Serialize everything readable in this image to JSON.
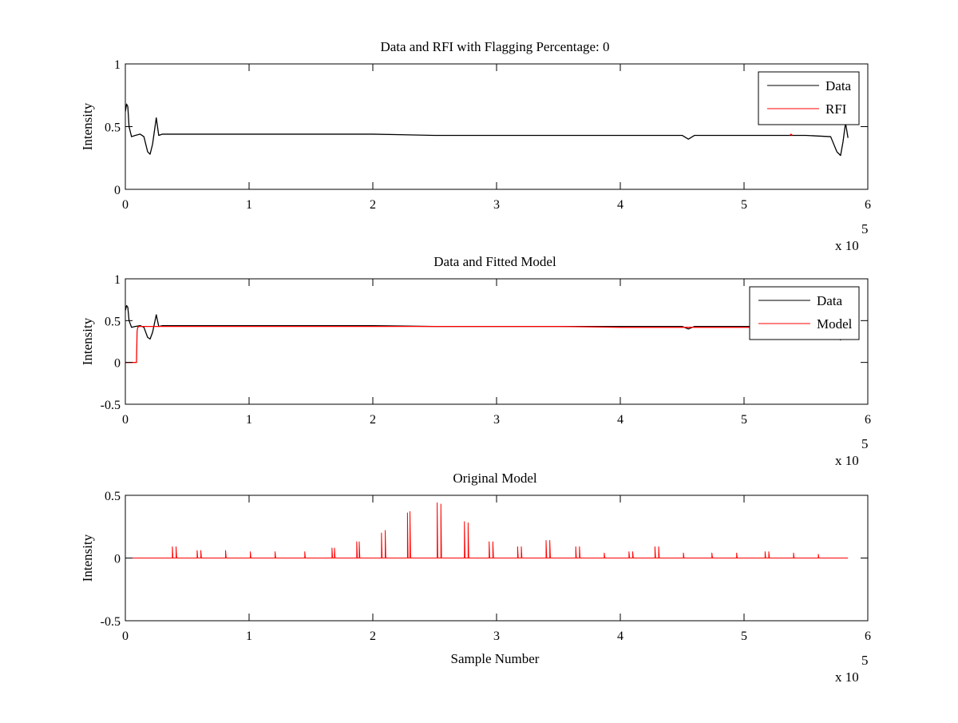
{
  "chart_data": [
    {
      "type": "line",
      "title": "Data and RFI with Flagging Percentage: 0",
      "xlabel": "",
      "ylabel": "Intensity",
      "xlim": [
        0,
        6
      ],
      "ylim": [
        0,
        1
      ],
      "x_ticks": [
        "0",
        "1",
        "2",
        "3",
        "4",
        "5",
        "6"
      ],
      "y_ticks": [
        "0",
        "0.5",
        "1"
      ],
      "x_multiplier": {
        "base": "x 10",
        "exponent": "5"
      },
      "legend_position": "top-right",
      "grid": false,
      "series": [
        {
          "name": "Data",
          "color": "#000000",
          "x": [
            0,
            0.01,
            0.02,
            0.03,
            0.05,
            0.08,
            0.12,
            0.15,
            0.18,
            0.2,
            0.22,
            0.24,
            0.25,
            0.27,
            0.3,
            0.5,
            1,
            1.5,
            2,
            2.5,
            3,
            3.5,
            4,
            4.5,
            4.55,
            4.6,
            5,
            5.5,
            5.7,
            5.75,
            5.78,
            5.8,
            5.82,
            5.84
          ],
          "y": [
            0.62,
            0.68,
            0.66,
            0.5,
            0.42,
            0.43,
            0.44,
            0.42,
            0.3,
            0.28,
            0.36,
            0.5,
            0.57,
            0.43,
            0.44,
            0.44,
            0.44,
            0.44,
            0.44,
            0.43,
            0.43,
            0.43,
            0.43,
            0.43,
            0.4,
            0.43,
            0.43,
            0.43,
            0.42,
            0.3,
            0.27,
            0.38,
            0.53,
            0.41
          ]
        },
        {
          "name": "RFI",
          "color": "#ff0000",
          "x": [
            5.37,
            5.38,
            5.39
          ],
          "y": [
            0.43,
            0.44,
            0.43
          ]
        }
      ]
    },
    {
      "type": "line",
      "title": "Data and Fitted Model",
      "xlabel": "",
      "ylabel": "Intensity",
      "xlim": [
        0,
        6
      ],
      "ylim": [
        -0.5,
        1
      ],
      "x_ticks": [
        "0",
        "1",
        "2",
        "3",
        "4",
        "5",
        "6"
      ],
      "y_ticks": [
        "-0.5",
        "0",
        "0.5",
        "1"
      ],
      "x_multiplier": {
        "base": "x 10",
        "exponent": "5"
      },
      "legend_position": "top-right",
      "grid": false,
      "series": [
        {
          "name": "Data",
          "color": "#000000",
          "x": [
            0,
            0.01,
            0.02,
            0.03,
            0.05,
            0.08,
            0.12,
            0.15,
            0.18,
            0.2,
            0.22,
            0.24,
            0.25,
            0.27,
            0.3,
            0.5,
            1,
            1.5,
            2,
            2.5,
            3,
            3.5,
            4,
            4.5,
            4.55,
            4.6,
            5,
            5.5,
            5.7,
            5.75,
            5.78,
            5.8,
            5.82,
            5.84
          ],
          "y": [
            0.62,
            0.68,
            0.66,
            0.5,
            0.42,
            0.43,
            0.44,
            0.42,
            0.3,
            0.28,
            0.36,
            0.5,
            0.57,
            0.43,
            0.44,
            0.44,
            0.44,
            0.44,
            0.44,
            0.43,
            0.43,
            0.43,
            0.43,
            0.43,
            0.4,
            0.43,
            0.43,
            0.43,
            0.42,
            0.3,
            0.27,
            0.38,
            0.53,
            0.41
          ]
        },
        {
          "name": "Model",
          "color": "#ff0000",
          "x": [
            0,
            0.09,
            0.095,
            0.1,
            0.11,
            0.12,
            0.5,
            1,
            1.5,
            2,
            2.5,
            3,
            3.5,
            4,
            4.5,
            5,
            5.5,
            5.84
          ],
          "y": [
            0,
            0,
            0.37,
            0.42,
            0.43,
            0.43,
            0.43,
            0.43,
            0.43,
            0.43,
            0.43,
            0.43,
            0.43,
            0.42,
            0.42,
            0.42,
            0.42,
            0.42
          ]
        }
      ]
    },
    {
      "type": "line",
      "title": "Original Model",
      "xlabel": "Sample Number",
      "ylabel": "Intensity",
      "xlim": [
        0,
        6
      ],
      "ylim": [
        -0.5,
        0.5
      ],
      "x_ticks": [
        "0",
        "1",
        "2",
        "3",
        "4",
        "5",
        "6"
      ],
      "y_ticks": [
        "-0.5",
        "0",
        "0.5"
      ],
      "x_multiplier": {
        "base": "x 10",
        "exponent": "5"
      },
      "grid": false,
      "series": [
        {
          "color": "#ff0000",
          "baseline": 0,
          "x_end": 5.84,
          "spikes": [
            [
              0.38,
              0.09
            ],
            [
              0.41,
              0.09
            ],
            [
              0.58,
              0.06
            ],
            [
              0.61,
              0.06
            ],
            [
              0.81,
              0.06
            ],
            [
              1.01,
              0.05
            ],
            [
              1.21,
              0.05
            ],
            [
              1.45,
              0.05
            ],
            [
              1.67,
              0.08
            ],
            [
              1.69,
              0.08
            ],
            [
              1.87,
              0.13
            ],
            [
              1.89,
              0.13
            ],
            [
              2.07,
              0.2
            ],
            [
              2.1,
              0.22
            ],
            [
              2.28,
              0.36
            ],
            [
              2.3,
              0.37
            ],
            [
              2.52,
              0.44
            ],
            [
              2.55,
              0.43
            ],
            [
              2.74,
              0.29
            ],
            [
              2.77,
              0.28
            ],
            [
              2.94,
              0.13
            ],
            [
              2.97,
              0.13
            ],
            [
              3.17,
              0.09
            ],
            [
              3.2,
              0.09
            ],
            [
              3.4,
              0.14
            ],
            [
              3.43,
              0.14
            ],
            [
              3.64,
              0.09
            ],
            [
              3.67,
              0.09
            ],
            [
              3.87,
              0.04
            ],
            [
              4.07,
              0.05
            ],
            [
              4.1,
              0.05
            ],
            [
              4.28,
              0.09
            ],
            [
              4.31,
              0.09
            ],
            [
              4.51,
              0.04
            ],
            [
              4.74,
              0.04
            ],
            [
              4.94,
              0.04
            ],
            [
              5.17,
              0.05
            ],
            [
              5.2,
              0.05
            ],
            [
              5.4,
              0.04
            ],
            [
              5.6,
              0.03
            ]
          ]
        }
      ]
    }
  ]
}
